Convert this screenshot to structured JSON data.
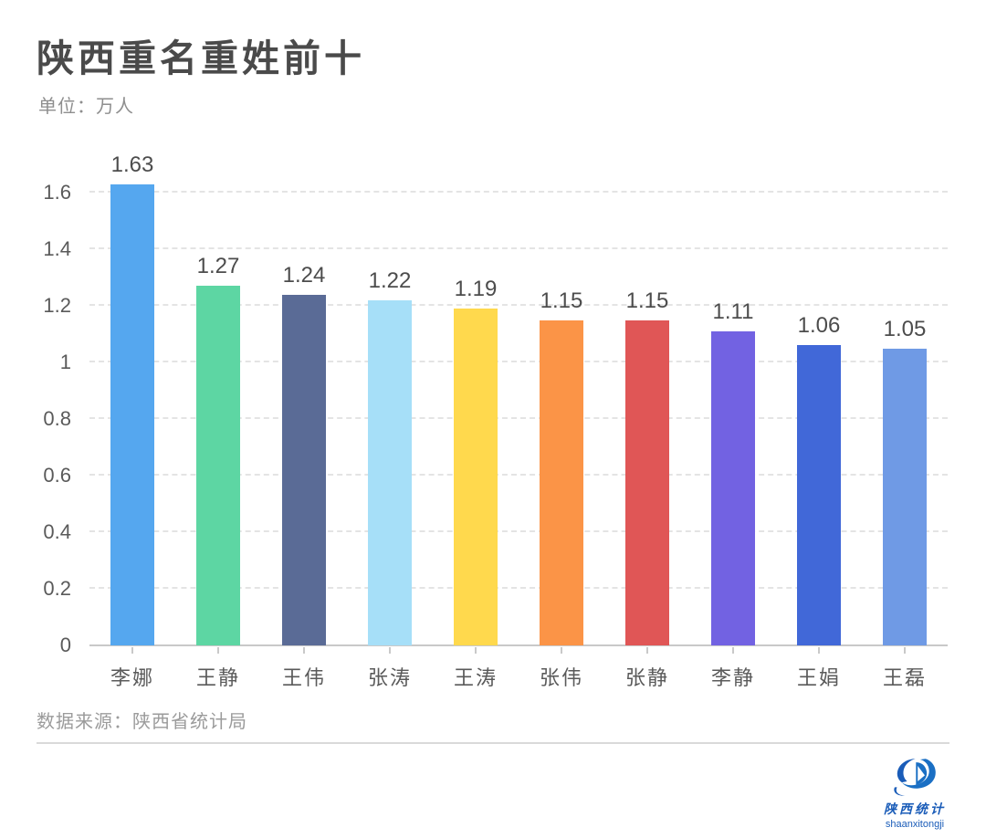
{
  "header": {
    "title": "陕西重名重姓前十",
    "unit_label": "单位：万人"
  },
  "footer": {
    "source": "数据来源：陕西省统计局"
  },
  "logo": {
    "name_cn": "陕西统计",
    "name_en": "shaanxitongji",
    "color": "#1a5cb8"
  },
  "chart_data": {
    "type": "bar",
    "title": "陕西重名重姓前十",
    "unit": "万人",
    "categories": [
      "李娜",
      "王静",
      "王伟",
      "张涛",
      "王涛",
      "张伟",
      "张静",
      "李静",
      "王娟",
      "王磊"
    ],
    "values": [
      1.63,
      1.27,
      1.24,
      1.22,
      1.19,
      1.15,
      1.15,
      1.11,
      1.06,
      1.05
    ],
    "bar_colors": [
      "#55A7EF",
      "#5DD6A3",
      "#5A6B96",
      "#A6DFF8",
      "#FFD94D",
      "#FB9447",
      "#E05656",
      "#7262E2",
      "#4168D8",
      "#6F9AE5"
    ],
    "xlabel": "",
    "ylabel": "万人",
    "ylim": [
      0,
      1.6
    ],
    "ytick_step": 0.2,
    "grid": "horizontal-dashed",
    "legend": "none",
    "value_labels": true
  }
}
